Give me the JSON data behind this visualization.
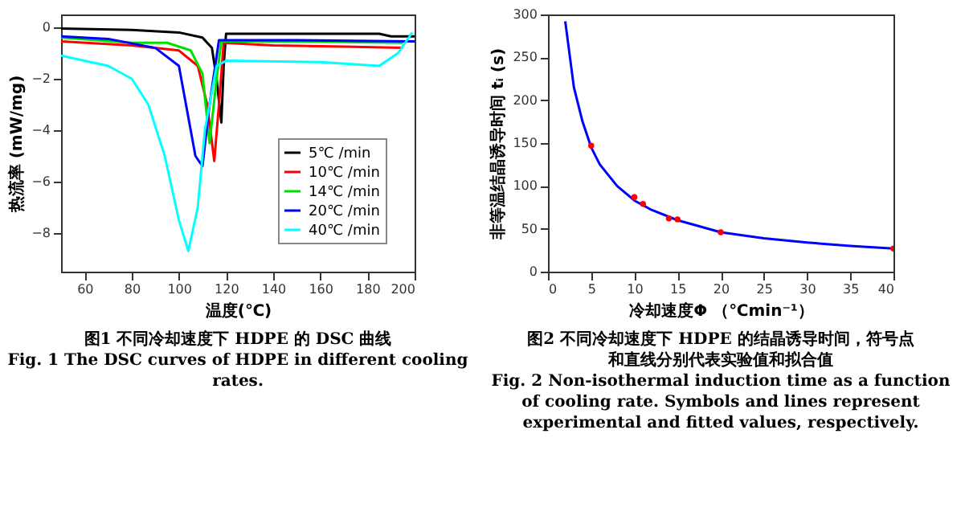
{
  "chart_data": [
    {
      "type": "line",
      "xlabel": "温度(℃)",
      "ylabel": "热流率 (mW/mg)",
      "xlim": [
        50,
        200
      ],
      "ylim": [
        -9.5,
        0.5
      ],
      "xticks": [
        60,
        80,
        100,
        120,
        140,
        160,
        180,
        200
      ],
      "yticks": [
        -8,
        -6,
        -4,
        -2,
        0
      ],
      "grid": false,
      "legend": "bottom right",
      "series": [
        {
          "name": "5℃ /min",
          "color": "#000000",
          "x": [
            50,
            80,
            100,
            110,
            114,
            116,
            118,
            119,
            120,
            150,
            185,
            190,
            200
          ],
          "values": [
            -0.05,
            -0.1,
            -0.2,
            -0.4,
            -0.8,
            -2.0,
            -3.7,
            -1.5,
            -0.25,
            -0.25,
            -0.25,
            -0.35,
            -0.35
          ]
        },
        {
          "name": "10℃ /min",
          "color": "#ff0000",
          "x": [
            50,
            80,
            100,
            108,
            112,
            115,
            117,
            119,
            140,
            170,
            195
          ],
          "values": [
            -0.55,
            -0.7,
            -0.9,
            -1.5,
            -3.0,
            -5.2,
            -3.0,
            -0.6,
            -0.7,
            -0.75,
            -0.8
          ]
        },
        {
          "name": "14℃ /min",
          "color": "#00e000",
          "x": [
            50,
            80,
            95,
            105,
            110,
            113,
            116,
            118,
            150,
            195
          ],
          "values": [
            -0.4,
            -0.6,
            -0.6,
            -0.9,
            -1.8,
            -4.5,
            -2.0,
            -0.55,
            -0.55,
            -0.6
          ]
        },
        {
          "name": "20℃ /min",
          "color": "#0000ff",
          "x": [
            50,
            70,
            90,
            100,
            104,
            107,
            110,
            113,
            117,
            150,
            200
          ],
          "values": [
            -0.35,
            -0.45,
            -0.8,
            -1.5,
            -3.5,
            -5.0,
            -5.4,
            -3.0,
            -0.5,
            -0.5,
            -0.55
          ]
        },
        {
          "name": "40℃ /min",
          "color": "#00ffff",
          "x": [
            50,
            70,
            80,
            87,
            94,
            100,
            104,
            108,
            111,
            116,
            120,
            160,
            185,
            193,
            199
          ],
          "values": [
            -1.1,
            -1.5,
            -2.0,
            -3.0,
            -5.0,
            -7.5,
            -8.7,
            -7.0,
            -4.0,
            -1.5,
            -1.3,
            -1.35,
            -1.5,
            -1.0,
            -0.2
          ]
        }
      ],
      "annotations": [
        "图1  不同冷却速度下 HDPE 的 DSC 曲线",
        "Fig. 1 The DSC curves of HDPE in different cooling rates."
      ]
    },
    {
      "type": "line",
      "xlabel": "冷却速度Φ （℃min⁻¹）",
      "ylabel": "非等温结晶诱导时间 tᵢ (s)",
      "xlim": [
        0,
        40
      ],
      "ylim": [
        0,
        300
      ],
      "xticks": [
        0,
        5,
        10,
        15,
        20,
        25,
        30,
        35,
        40
      ],
      "yticks": [
        0,
        50,
        100,
        150,
        200,
        250,
        300
      ],
      "grid": false,
      "legend": false,
      "series": [
        {
          "type": "line",
          "color": "#0000ff",
          "x": [
            2,
            3,
            4,
            5,
            6,
            8,
            10,
            12,
            15,
            20,
            25,
            30,
            35,
            40
          ],
          "values": [
            292,
            215,
            175,
            145,
            125,
            100,
            83,
            72,
            60,
            46,
            39,
            34,
            30,
            27
          ]
        },
        {
          "type": "scatter",
          "color": "#ff0000",
          "x": [
            5,
            10,
            11,
            14,
            15,
            20,
            40
          ],
          "values": [
            147,
            87,
            79,
            62,
            61,
            46,
            27
          ]
        }
      ],
      "annotations": [
        "图2 不同冷却速度下 HDPE 的结晶诱导时间，符号点和直线分别代表实验值和拟合值",
        "Fig. 2 Non-isothermal induction time as a function of cooling rate. Symbols and lines represent experimental and fitted values, respectively."
      ]
    }
  ]
}
